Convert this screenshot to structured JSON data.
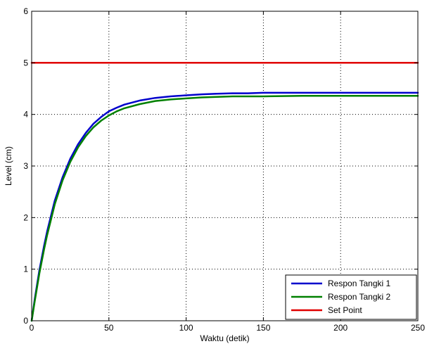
{
  "chart_data": {
    "type": "line",
    "xlabel": "Waktu (detik)",
    "ylabel": "Level (cm)",
    "xlim": [
      0,
      250
    ],
    "ylim": [
      0,
      6
    ],
    "x_ticks": [
      0,
      50,
      100,
      150,
      200,
      250
    ],
    "y_ticks": [
      0,
      1,
      2,
      3,
      4,
      5,
      6
    ],
    "grid": true,
    "legend_position": "bottom-right",
    "series": [
      {
        "name": "Respon Tangki 1",
        "color": "#0000cc",
        "x": [
          0,
          2,
          5,
          8,
          10,
          15,
          20,
          25,
          30,
          35,
          40,
          45,
          50,
          55,
          60,
          70,
          80,
          90,
          100,
          110,
          120,
          130,
          140,
          150,
          175,
          200,
          250
        ],
        "y": [
          0,
          0.42,
          0.98,
          1.45,
          1.73,
          2.33,
          2.78,
          3.14,
          3.42,
          3.64,
          3.82,
          3.95,
          4.06,
          4.13,
          4.19,
          4.27,
          4.32,
          4.35,
          4.37,
          4.39,
          4.4,
          4.41,
          4.41,
          4.42,
          4.42,
          4.42,
          4.42
        ]
      },
      {
        "name": "Respon Tangki 2",
        "color": "#008000",
        "x": [
          0,
          2,
          5,
          8,
          10,
          15,
          20,
          25,
          30,
          35,
          40,
          45,
          50,
          55,
          60,
          70,
          80,
          90,
          100,
          110,
          120,
          130,
          140,
          150,
          175,
          200,
          250
        ],
        "y": [
          0,
          0.38,
          0.92,
          1.38,
          1.66,
          2.26,
          2.72,
          3.08,
          3.36,
          3.58,
          3.75,
          3.88,
          3.98,
          4.06,
          4.12,
          4.2,
          4.26,
          4.29,
          4.31,
          4.33,
          4.34,
          4.35,
          4.35,
          4.35,
          4.36,
          4.36,
          4.36
        ]
      },
      {
        "name": "Set Point",
        "color": "#e00000",
        "x": [
          0,
          250
        ],
        "y": [
          5,
          5
        ]
      }
    ]
  }
}
